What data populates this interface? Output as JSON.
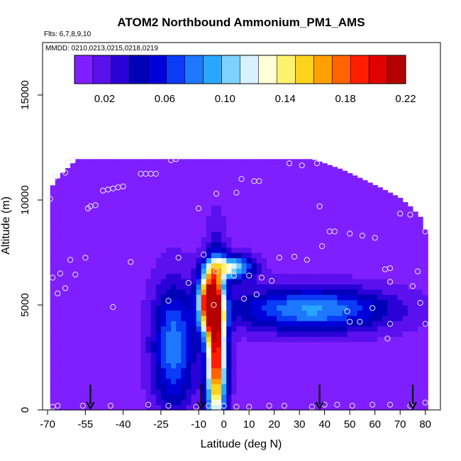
{
  "chart_data": {
    "type": "heatmap",
    "title": "ATOM2 Northbound Ammonium_PM1_AMS",
    "subtitle_flights": "Flts: 6,7,8,9,10",
    "subtitle_dates": "MMDD: 0210,0213,0215,0218,0219",
    "xlabel": "Latitude (deg N)",
    "ylabel": "Altitude (m)",
    "xlim": [
      -72,
      86
    ],
    "ylim": [
      0,
      17500
    ],
    "xticks": [
      -70,
      -55,
      -40,
      -25,
      -10,
      0,
      10,
      20,
      30,
      40,
      50,
      60,
      70,
      80
    ],
    "xtick_labels": [
      "-70",
      "-55",
      "-40",
      "-25",
      "-10",
      "0",
      "10",
      "20",
      "30",
      "40",
      "50",
      "60",
      "70",
      "80"
    ],
    "yticks": [
      0,
      5000,
      10000,
      15000
    ],
    "ytick_labels": [
      "0",
      "5000",
      "10000",
      "15000"
    ],
    "colorbar": {
      "range": [
        0.0,
        0.22
      ],
      "tick_values": [
        0.02,
        0.06,
        0.1,
        0.14,
        0.18,
        0.22
      ],
      "tick_labels": [
        "0.02",
        "0.06",
        "0.10",
        "0.14",
        "0.18",
        "0.22"
      ],
      "colors": [
        "#7f1fff",
        "#5b10ee",
        "#2a02d8",
        "#0000b8",
        "#0000d8",
        "#0a3cf5",
        "#1e78ff",
        "#2aa6ff",
        "#7cd2ff",
        "#d8f0ff",
        "#ffffd8",
        "#fff26e",
        "#ffd21e",
        "#ffa000",
        "#ff6400",
        "#ff1e00",
        "#e00000",
        "#b40000"
      ]
    },
    "envelope": [
      {
        "lat": -69,
        "alt_top": 10500
      },
      {
        "lat": -67,
        "alt_top": 10900
      },
      {
        "lat": -64,
        "alt_top": 11300
      },
      {
        "lat": -60,
        "alt_top": 11750
      },
      {
        "lat": -58,
        "alt_top": 11950
      },
      {
        "lat": 35,
        "alt_top": 11950
      },
      {
        "lat": 40,
        "alt_top": 11750
      },
      {
        "lat": 47,
        "alt_top": 11450
      },
      {
        "lat": 55,
        "alt_top": 11000
      },
      {
        "lat": 62,
        "alt_top": 10600
      },
      {
        "lat": 70,
        "alt_top": 10100
      },
      {
        "lat": 74,
        "alt_top": 9700
      },
      {
        "lat": 78,
        "alt_top": 9200
      },
      {
        "lat": 80,
        "alt_top": 8600
      }
    ],
    "field": {
      "background": 0.006,
      "features": [
        {
          "name": "tropical core",
          "lat": -3,
          "alt": 2800,
          "value": 0.195,
          "lat_halfwidth": 2.8,
          "alt_halfwidth": 3300
        },
        {
          "name": "core upper",
          "lat": -6,
          "alt": 5200,
          "value": 0.175,
          "lat_halfwidth": 3.0,
          "alt_halfwidth": 1200
        },
        {
          "name": "north plume",
          "lat": 35,
          "alt": 4800,
          "value": 0.082,
          "lat_halfwidth": 22,
          "alt_halfwidth": 900
        },
        {
          "name": "south plume",
          "lat": -20,
          "alt": 3000,
          "value": 0.075,
          "lat_halfwidth": 6,
          "alt_halfwidth": 2600
        },
        {
          "name": "cap",
          "lat": 3,
          "alt": 6800,
          "value": 0.11,
          "lat_halfwidth": 6,
          "alt_halfwidth": 500
        }
      ]
    },
    "sample_points": [
      [
        -69,
        10050
      ],
      [
        -68,
        6300
      ],
      [
        -66,
        5550
      ],
      [
        -65,
        6500
      ],
      [
        -63,
        5800
      ],
      [
        -61,
        7150
      ],
      [
        -59,
        6450
      ],
      [
        -67,
        11100
      ],
      [
        -63,
        11300
      ],
      [
        -62,
        11800
      ],
      [
        -60,
        11900
      ],
      [
        -55,
        7250
      ],
      [
        -54,
        9600
      ],
      [
        -53,
        9700
      ],
      [
        -51,
        9750
      ],
      [
        -48,
        10450
      ],
      [
        -46,
        10500
      ],
      [
        -44,
        10550
      ],
      [
        -42,
        10600
      ],
      [
        -40,
        10650
      ],
      [
        -37,
        7050
      ],
      [
        -33,
        11250
      ],
      [
        -31,
        11250
      ],
      [
        -29,
        11250
      ],
      [
        -27,
        11250
      ],
      [
        -21,
        11900
      ],
      [
        -19,
        11950
      ],
      [
        -18,
        7250
      ],
      [
        -8,
        7400
      ],
      [
        -14,
        6050
      ],
      [
        -22,
        5200
      ],
      [
        -44,
        4900
      ],
      [
        -10,
        9600
      ],
      [
        -3,
        10300
      ],
      [
        5,
        10350
      ],
      [
        7,
        11000
      ],
      [
        12,
        10900
      ],
      [
        14,
        10900
      ],
      [
        19,
        6150
      ],
      [
        22,
        7250
      ],
      [
        26,
        11750
      ],
      [
        28,
        7300
      ],
      [
        31,
        11650
      ],
      [
        33,
        7150
      ],
      [
        37,
        11750
      ],
      [
        38,
        9700
      ],
      [
        39,
        7800
      ],
      [
        42,
        8500
      ],
      [
        44,
        8500
      ],
      [
        50,
        8400
      ],
      [
        55,
        8300
      ],
      [
        60,
        8200
      ],
      [
        64,
        6700
      ],
      [
        66,
        6750
      ],
      [
        66,
        6100
      ],
      [
        70,
        9350
      ],
      [
        74,
        9300
      ],
      [
        75,
        5900
      ],
      [
        77,
        6600
      ],
      [
        78,
        5100
      ],
      [
        80,
        4100
      ],
      [
        80,
        8500
      ],
      [
        -3,
        6600
      ],
      [
        0,
        6300
      ],
      [
        4,
        6400
      ],
      [
        10,
        6400
      ],
      [
        13,
        5500
      ],
      [
        15,
        6300
      ],
      [
        -4,
        5000
      ],
      [
        8,
        5300
      ],
      [
        49,
        4700
      ],
      [
        50,
        4200
      ],
      [
        54,
        4200
      ],
      [
        59,
        4850
      ],
      [
        65,
        3400
      ],
      [
        66,
        4100
      ],
      [
        -68,
        150
      ],
      [
        -66,
        200
      ],
      [
        -56,
        200
      ],
      [
        -45,
        200
      ],
      [
        -30,
        250
      ],
      [
        -22,
        200
      ],
      [
        -11,
        150
      ],
      [
        -6,
        200
      ],
      [
        0,
        200
      ],
      [
        5,
        150
      ],
      [
        10,
        150
      ],
      [
        18,
        200
      ],
      [
        24,
        200
      ],
      [
        35,
        150
      ],
      [
        40,
        250
      ],
      [
        45,
        250
      ],
      [
        51,
        200
      ],
      [
        59,
        250
      ],
      [
        66,
        250
      ],
      [
        74,
        200
      ],
      [
        80,
        350
      ]
    ],
    "arrow_lats": [
      -53,
      -9,
      38,
      75
    ]
  }
}
